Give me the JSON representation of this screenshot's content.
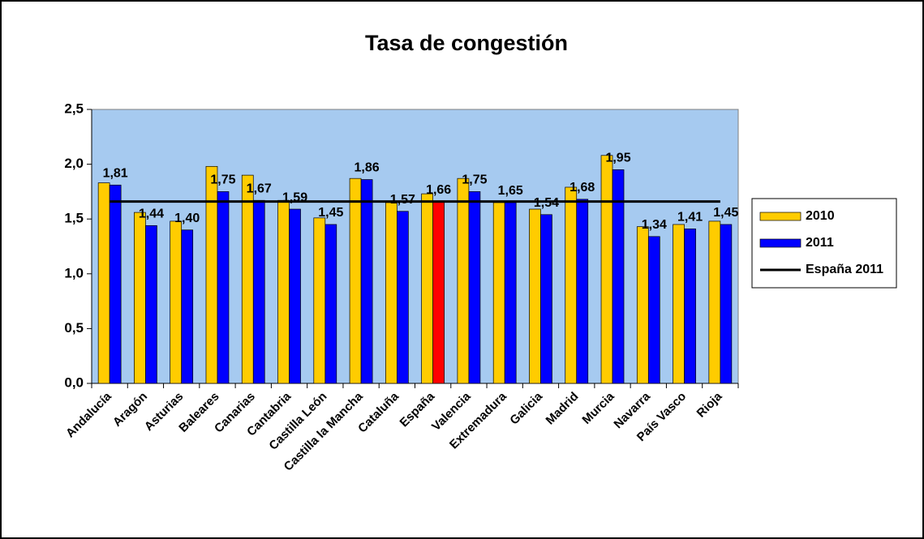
{
  "chart_data": {
    "type": "bar",
    "title": "Tasa de congestión",
    "categories": [
      "Andalucía",
      "Aragón",
      "Asturias",
      "Baleares",
      "Canarias",
      "Cantabria",
      "Castilla León",
      "Castilla la Mancha",
      "Cataluña",
      "España",
      "Valencia",
      "Extremadura",
      "Galicia",
      "Madrid",
      "Murcia",
      "Navarra",
      "País Vasco",
      "Rioja"
    ],
    "series": [
      {
        "name": "2010",
        "color": "#ffcc00",
        "values": [
          1.83,
          1.56,
          1.48,
          1.98,
          1.9,
          1.67,
          1.51,
          1.87,
          1.65,
          1.73,
          1.87,
          1.65,
          1.59,
          1.79,
          2.08,
          1.43,
          1.45,
          1.48
        ]
      },
      {
        "name": "2011",
        "color": "#0000ff",
        "point_colors": [
          "#0000ff",
          "#0000ff",
          "#0000ff",
          "#0000ff",
          "#0000ff",
          "#0000ff",
          "#0000ff",
          "#0000ff",
          "#0000ff",
          "#ff0000",
          "#0000ff",
          "#0000ff",
          "#0000ff",
          "#0000ff",
          "#0000ff",
          "#0000ff",
          "#0000ff",
          "#0000ff"
        ],
        "values": [
          1.81,
          1.44,
          1.4,
          1.75,
          1.67,
          1.59,
          1.45,
          1.86,
          1.57,
          1.66,
          1.75,
          1.65,
          1.54,
          1.68,
          1.95,
          1.34,
          1.41,
          1.45
        ],
        "value_labels": [
          "1,81",
          "1,44",
          "1,40",
          "1,75",
          "1,67",
          "1,59",
          "1,45",
          "1,86",
          "1,57",
          "1,66",
          "1,75",
          "1,65",
          "1,54",
          "1,68",
          "1,95",
          "1,34",
          "1,41",
          "1,45"
        ]
      }
    ],
    "reference_line": {
      "name": "España 2011",
      "value": 1.66,
      "color": "#000000"
    },
    "ylim": [
      0,
      2.5
    ],
    "yticks": [
      {
        "value": 0,
        "label": "0,0"
      },
      {
        "value": 0.5,
        "label": "0,5"
      },
      {
        "value": 1,
        "label": "1,0"
      },
      {
        "value": 1.5,
        "label": "1,5"
      },
      {
        "value": 2,
        "label": "2,0"
      },
      {
        "value": 2.5,
        "label": "2,5"
      }
    ],
    "plot_background": "#a6caf0",
    "legend": "right"
  }
}
